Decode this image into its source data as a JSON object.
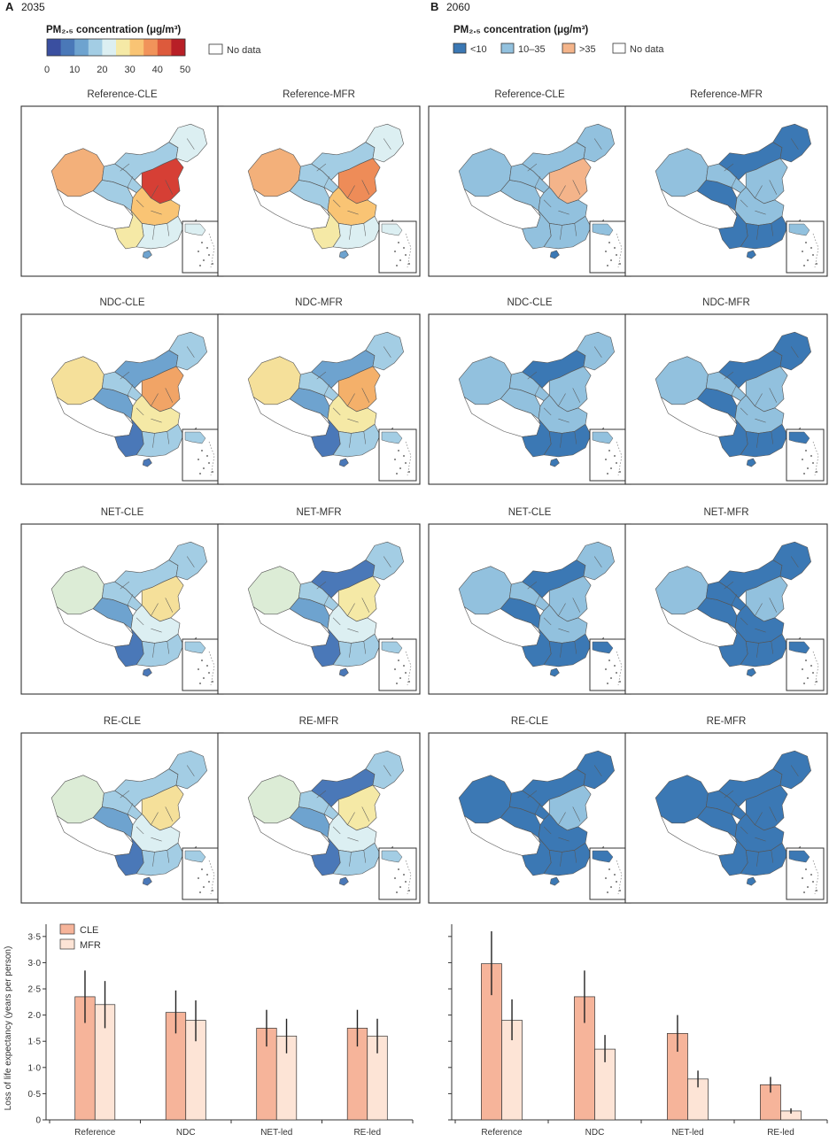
{
  "panels": [
    {
      "letter": "A",
      "year": "2035"
    },
    {
      "letter": "B",
      "year": "2060"
    }
  ],
  "legend_continuous": {
    "title": "PM₂.₅ concentration (μg/m³)",
    "ticks": [
      "0",
      "10",
      "20",
      "30",
      "40",
      "50"
    ],
    "colors": [
      "#3a4fa0",
      "#4a78b8",
      "#6ea3cf",
      "#a3cde4",
      "#dceff2",
      "#f5e9a6",
      "#f9c474",
      "#f1935a",
      "#dd5a3c",
      "#b81f26"
    ],
    "no_data": "No data"
  },
  "legend_discrete": {
    "title": "PM₂.₅ concentration (μg/m³)",
    "items": [
      {
        "label": "<10",
        "color": "#3b78b4"
      },
      {
        "label": "10–35",
        "color": "#92c1de"
      },
      {
        "label": ">35",
        "color": "#f4b48a"
      },
      {
        "label": "No data",
        "color": "#ffffff"
      }
    ]
  },
  "maps": [
    {
      "label": "Reference-CLE",
      "palette": "cont",
      "colors": {
        "xinjiang": "#f3b07a",
        "tibet": "#ffffff",
        "qinghai": "#a3cde4",
        "gansu": "#a3cde4",
        "inner": "#a3cde4",
        "northeast": "#dceff2",
        "north": "#d63f35",
        "central": "#f9c474",
        "southwest": "#f5e9a6",
        "south": "#dceff2",
        "hainan": "#6ea3cf",
        "inset": "#dceff2"
      }
    },
    {
      "label": "Reference-MFR",
      "palette": "cont",
      "colors": {
        "xinjiang": "#f3b07a",
        "tibet": "#ffffff",
        "qinghai": "#a3cde4",
        "gansu": "#a3cde4",
        "inner": "#a3cde4",
        "northeast": "#dceff2",
        "north": "#ee8c58",
        "central": "#f9c474",
        "southwest": "#f5e9a6",
        "south": "#dceff2",
        "hainan": "#6ea3cf",
        "inset": "#dceff2"
      }
    },
    {
      "label": "Reference-CLE",
      "palette": "disc",
      "colors": {
        "xinjiang": "#92c1de",
        "tibet": "#ffffff",
        "qinghai": "#92c1de",
        "gansu": "#92c1de",
        "inner": "#92c1de",
        "northeast": "#92c1de",
        "north": "#f4b48a",
        "central": "#92c1de",
        "southwest": "#92c1de",
        "south": "#92c1de",
        "hainan": "#3b78b4",
        "inset": "#92c1de"
      }
    },
    {
      "label": "Reference-MFR",
      "palette": "disc",
      "colors": {
        "xinjiang": "#92c1de",
        "tibet": "#ffffff",
        "qinghai": "#3b78b4",
        "gansu": "#92c1de",
        "inner": "#3b78b4",
        "northeast": "#3b78b4",
        "north": "#92c1de",
        "central": "#92c1de",
        "southwest": "#3b78b4",
        "south": "#3b78b4",
        "hainan": "#3b78b4",
        "inset": "#92c1de"
      }
    },
    {
      "label": "NDC-CLE",
      "palette": "cont",
      "colors": {
        "xinjiang": "#f5e09a",
        "tibet": "#ffffff",
        "qinghai": "#6ea3cf",
        "gansu": "#a3cde4",
        "inner": "#6ea3cf",
        "northeast": "#a3cde4",
        "north": "#f1a466",
        "central": "#f5e9a6",
        "southwest": "#4a78b8",
        "south": "#a3cde4",
        "hainan": "#4a78b8",
        "inset": "#a3cde4"
      }
    },
    {
      "label": "NDC-MFR",
      "palette": "cont",
      "colors": {
        "xinjiang": "#f5e09a",
        "tibet": "#ffffff",
        "qinghai": "#6ea3cf",
        "gansu": "#a3cde4",
        "inner": "#6ea3cf",
        "northeast": "#a3cde4",
        "north": "#f4b06a",
        "central": "#f5e9a6",
        "southwest": "#4a78b8",
        "south": "#a3cde4",
        "hainan": "#4a78b8",
        "inset": "#a3cde4"
      }
    },
    {
      "label": "NDC-CLE",
      "palette": "disc",
      "colors": {
        "xinjiang": "#92c1de",
        "tibet": "#ffffff",
        "qinghai": "#92c1de",
        "gansu": "#92c1de",
        "inner": "#3b78b4",
        "northeast": "#92c1de",
        "north": "#92c1de",
        "central": "#92c1de",
        "southwest": "#3b78b4",
        "south": "#3b78b4",
        "hainan": "#3b78b4",
        "inset": "#92c1de"
      }
    },
    {
      "label": "NDC-MFR",
      "palette": "disc",
      "colors": {
        "xinjiang": "#92c1de",
        "tibet": "#ffffff",
        "qinghai": "#3b78b4",
        "gansu": "#92c1de",
        "inner": "#3b78b4",
        "northeast": "#3b78b4",
        "north": "#92c1de",
        "central": "#92c1de",
        "southwest": "#3b78b4",
        "south": "#3b78b4",
        "hainan": "#3b78b4",
        "inset": "#3b78b4"
      }
    },
    {
      "label": "NET-CLE",
      "palette": "cont",
      "colors": {
        "xinjiang": "#dcecd6",
        "tibet": "#ffffff",
        "qinghai": "#6ea3cf",
        "gansu": "#a3cde4",
        "inner": "#a3cde4",
        "northeast": "#a3cde4",
        "north": "#f5e09a",
        "central": "#dceff2",
        "southwest": "#4a78b8",
        "south": "#a3cde4",
        "hainan": "#4a78b8",
        "inset": "#a3cde4"
      }
    },
    {
      "label": "NET-MFR",
      "palette": "cont",
      "colors": {
        "xinjiang": "#dcecd6",
        "tibet": "#ffffff",
        "qinghai": "#6ea3cf",
        "gansu": "#a3cde4",
        "inner": "#4a78b8",
        "northeast": "#a3cde4",
        "north": "#f5e9a6",
        "central": "#dceff2",
        "southwest": "#4a78b8",
        "south": "#a3cde4",
        "hainan": "#4a78b8",
        "inset": "#a3cde4"
      }
    },
    {
      "label": "NET-CLE",
      "palette": "disc",
      "colors": {
        "xinjiang": "#92c1de",
        "tibet": "#ffffff",
        "qinghai": "#3b78b4",
        "gansu": "#92c1de",
        "inner": "#3b78b4",
        "northeast": "#92c1de",
        "north": "#92c1de",
        "central": "#92c1de",
        "southwest": "#3b78b4",
        "south": "#3b78b4",
        "hainan": "#3b78b4",
        "inset": "#3b78b4"
      }
    },
    {
      "label": "NET-MFR",
      "palette": "disc",
      "colors": {
        "xinjiang": "#92c1de",
        "tibet": "#ffffff",
        "qinghai": "#3b78b4",
        "gansu": "#3b78b4",
        "inner": "#3b78b4",
        "northeast": "#3b78b4",
        "north": "#92c1de",
        "central": "#3b78b4",
        "southwest": "#3b78b4",
        "south": "#3b78b4",
        "hainan": "#3b78b4",
        "inset": "#3b78b4"
      }
    },
    {
      "label": "RE-CLE",
      "palette": "cont",
      "colors": {
        "xinjiang": "#dcecd6",
        "tibet": "#ffffff",
        "qinghai": "#6ea3cf",
        "gansu": "#a3cde4",
        "inner": "#a3cde4",
        "northeast": "#a3cde4",
        "north": "#f5e09a",
        "central": "#dceff2",
        "southwest": "#4a78b8",
        "south": "#a3cde4",
        "hainan": "#4a78b8",
        "inset": "#a3cde4"
      }
    },
    {
      "label": "RE-MFR",
      "palette": "cont",
      "colors": {
        "xinjiang": "#dcecd6",
        "tibet": "#ffffff",
        "qinghai": "#6ea3cf",
        "gansu": "#a3cde4",
        "inner": "#4a78b8",
        "northeast": "#a3cde4",
        "north": "#f5e9a6",
        "central": "#dceff2",
        "southwest": "#4a78b8",
        "south": "#a3cde4",
        "hainan": "#4a78b8",
        "inset": "#a3cde4"
      }
    },
    {
      "label": "RE-CLE",
      "palette": "disc",
      "colors": {
        "xinjiang": "#3b78b4",
        "tibet": "#ffffff",
        "qinghai": "#3b78b4",
        "gansu": "#3b78b4",
        "inner": "#3b78b4",
        "northeast": "#3b78b4",
        "north": "#92c1de",
        "central": "#3b78b4",
        "southwest": "#3b78b4",
        "south": "#3b78b4",
        "hainan": "#3b78b4",
        "inset": "#3b78b4"
      }
    },
    {
      "label": "RE-MFR",
      "palette": "disc",
      "colors": {
        "xinjiang": "#3b78b4",
        "tibet": "#ffffff",
        "qinghai": "#3b78b4",
        "gansu": "#3b78b4",
        "inner": "#3b78b4",
        "northeast": "#3b78b4",
        "north": "#3b78b4",
        "central": "#3b78b4",
        "southwest": "#3b78b4",
        "south": "#3b78b4",
        "hainan": "#3b78b4",
        "inset": "#3b78b4"
      }
    }
  ],
  "chart_data": [
    {
      "type": "bar",
      "panel": "A",
      "categories": [
        "Reference",
        "NDC",
        "NET-led",
        "RE-led"
      ],
      "series": [
        {
          "name": "CLE",
          "color": "#f6b49a",
          "values": [
            2.35,
            2.05,
            1.75,
            1.75
          ],
          "error_low": [
            1.85,
            1.65,
            1.4,
            1.4
          ],
          "error_high": [
            2.85,
            2.47,
            2.1,
            2.1
          ]
        },
        {
          "name": "MFR",
          "color": "#fde4d6",
          "values": [
            2.2,
            1.9,
            1.6,
            1.6
          ],
          "error_low": [
            1.75,
            1.5,
            1.27,
            1.27
          ],
          "error_high": [
            2.65,
            2.28,
            1.93,
            1.93
          ]
        }
      ],
      "ylabel": "Loss of life expectancy (years per person)",
      "yticks": [
        "0",
        "0·5",
        "1·0",
        "1·5",
        "2·0",
        "2·5",
        "3·0",
        "3·5"
      ],
      "ylim": [
        0,
        3.7
      ]
    },
    {
      "type": "bar",
      "panel": "B",
      "categories": [
        "Reference",
        "NDC",
        "NET-led",
        "RE-led"
      ],
      "series": [
        {
          "name": "CLE",
          "color": "#f6b49a",
          "values": [
            2.98,
            2.35,
            1.65,
            0.67
          ],
          "error_low": [
            2.38,
            1.85,
            1.3,
            0.52
          ],
          "error_high": [
            3.6,
            2.85,
            2.0,
            0.82
          ]
        },
        {
          "name": "MFR",
          "color": "#fde4d6",
          "values": [
            1.9,
            1.35,
            0.78,
            0.17
          ],
          "error_low": [
            1.52,
            1.1,
            0.62,
            0.12
          ],
          "error_high": [
            2.3,
            1.62,
            0.94,
            0.22
          ]
        }
      ],
      "ylim": [
        0,
        3.7
      ]
    }
  ]
}
